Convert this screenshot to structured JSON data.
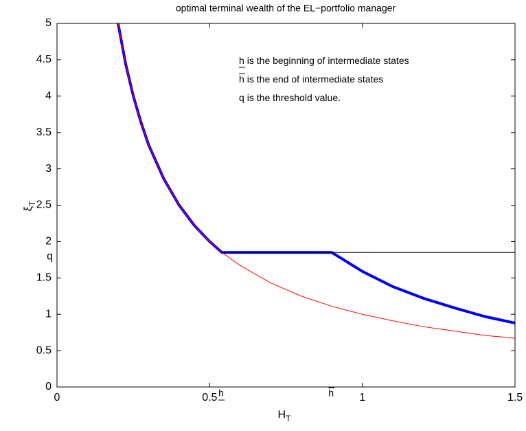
{
  "chart_data": {
    "type": "line",
    "title": "optimal terminal wealth of the EL−portfolio manager",
    "xlabel": "H",
    "xlabel_subscript": "T",
    "ylabel": "ξ",
    "ylabel_subscript": "T",
    "xlim": [
      0,
      1.5
    ],
    "ylim": [
      0,
      5
    ],
    "xticks": [
      0,
      0.5,
      1,
      1.5
    ],
    "yticks": [
      0,
      0.5,
      1,
      1.5,
      2,
      2.5,
      3,
      3.5,
      4,
      4.5,
      5
    ],
    "series": [
      {
        "color": "#0000ff",
        "width": 4,
        "x": [
          0.2,
          0.225,
          0.25,
          0.275,
          0.3,
          0.35,
          0.4,
          0.45,
          0.5,
          0.54,
          0.6,
          0.7,
          0.8,
          0.9,
          1.0,
          1.1,
          1.2,
          1.3,
          1.4,
          1.5
        ],
        "values": [
          5,
          4.44,
          4,
          3.64,
          3.33,
          2.86,
          2.5,
          2.22,
          2,
          1.85,
          1.85,
          1.85,
          1.85,
          1.85,
          1.59,
          1.38,
          1.22,
          1.09,
          0.97,
          0.88
        ]
      },
      {
        "color": "#ff0000",
        "width": 1,
        "x": [
          0.2,
          0.225,
          0.25,
          0.275,
          0.3,
          0.35,
          0.4,
          0.45,
          0.5,
          0.54,
          0.6,
          0.7,
          0.8,
          0.9,
          1.0,
          1.1,
          1.2,
          1.3,
          1.4,
          1.5
        ],
        "values": [
          5,
          4.44,
          4,
          3.64,
          3.33,
          2.86,
          2.5,
          2.22,
          2,
          1.85,
          1.67,
          1.43,
          1.25,
          1.11,
          1,
          0.91,
          0.83,
          0.77,
          0.71,
          0.67
        ]
      },
      {
        "color": "#000000",
        "width": 1,
        "x": [
          0.54,
          1.5
        ],
        "values": [
          1.85,
          1.85
        ]
      }
    ],
    "notes": [
      {
        "symbol": "h",
        "decoration": "underline",
        "text": "is the beginning of intermediate states"
      },
      {
        "symbol": "h",
        "decoration": "overline",
        "text": "is the end of intermediate states"
      },
      {
        "symbol": "q",
        "decoration": "none",
        "text": "is the threshold value."
      }
    ],
    "annotations": [
      {
        "text": "q",
        "y": 1.85
      },
      {
        "text": "h",
        "x": 0.54,
        "decoration": "underline"
      },
      {
        "text": "h",
        "x": 0.9,
        "decoration": "overline"
      }
    ]
  }
}
